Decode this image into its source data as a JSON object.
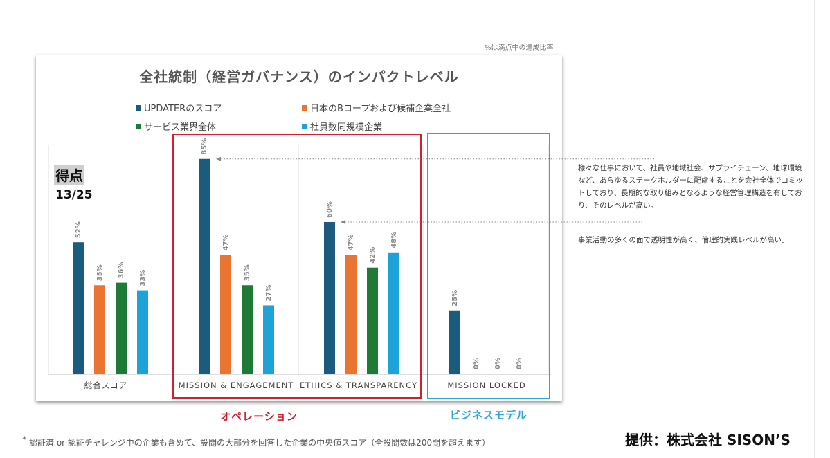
{
  "note_top": "%は満点中の達成比率",
  "score": {
    "label": "得点",
    "value": "13/25"
  },
  "group_labels": {
    "operations": "オペレーション",
    "business_model": "ビジネスモデル"
  },
  "annotations": [
    "様々な仕事において、社員や地域社会、サプライチェーン、地球環境など、あらゆるステークホルダーに配慮することを会社全体でコミットしており、長期的な取り組みとなるような経営管理構造を有しており、そのレベルが高い。",
    "事業活動の多くの面で透明性が高く、倫理的実践レベルが高い。"
  ],
  "footnote": {
    "mark": "*",
    "text": "認証済 or 認証チャレンジ中の企業も含めて、設問の大部分を回答した企業の中央値スコア（全設問数は200問を超えます）"
  },
  "provided_by": "提供：株式会社 SISON’S",
  "colors": {
    "updater": "#1b5b7d",
    "bcorp": "#ea7533",
    "service": "#1f7a38",
    "same_size": "#1ea3d8",
    "red": "#d32030",
    "blue": "#2aa7dc"
  },
  "chart_data": {
    "type": "bar",
    "title": "全社統制（経営ガバナンス）のインパクトレベル",
    "categories": [
      "総合スコア",
      "MISSION & ENGAGEMENT",
      "ETHICS & TRANSPARENCY",
      "MISSION LOCKED"
    ],
    "series": [
      {
        "name": "UPDATERのスコア",
        "color": "#1b5b7d",
        "values": [
          52,
          85,
          60,
          25
        ]
      },
      {
        "name": "日本のBコープおよび候補企業全社",
        "color": "#ea7533",
        "values": [
          35,
          47,
          47,
          0
        ]
      },
      {
        "name": "サービス業界全体",
        "color": "#1f7a38",
        "values": [
          36,
          35,
          42,
          0
        ]
      },
      {
        "name": "社員数同規模企業",
        "color": "#1ea3d8",
        "values": [
          33,
          27,
          48,
          0
        ]
      }
    ],
    "value_suffix": "%",
    "ylim": [
      0,
      100
    ],
    "xlabel": "",
    "ylabel": ""
  }
}
